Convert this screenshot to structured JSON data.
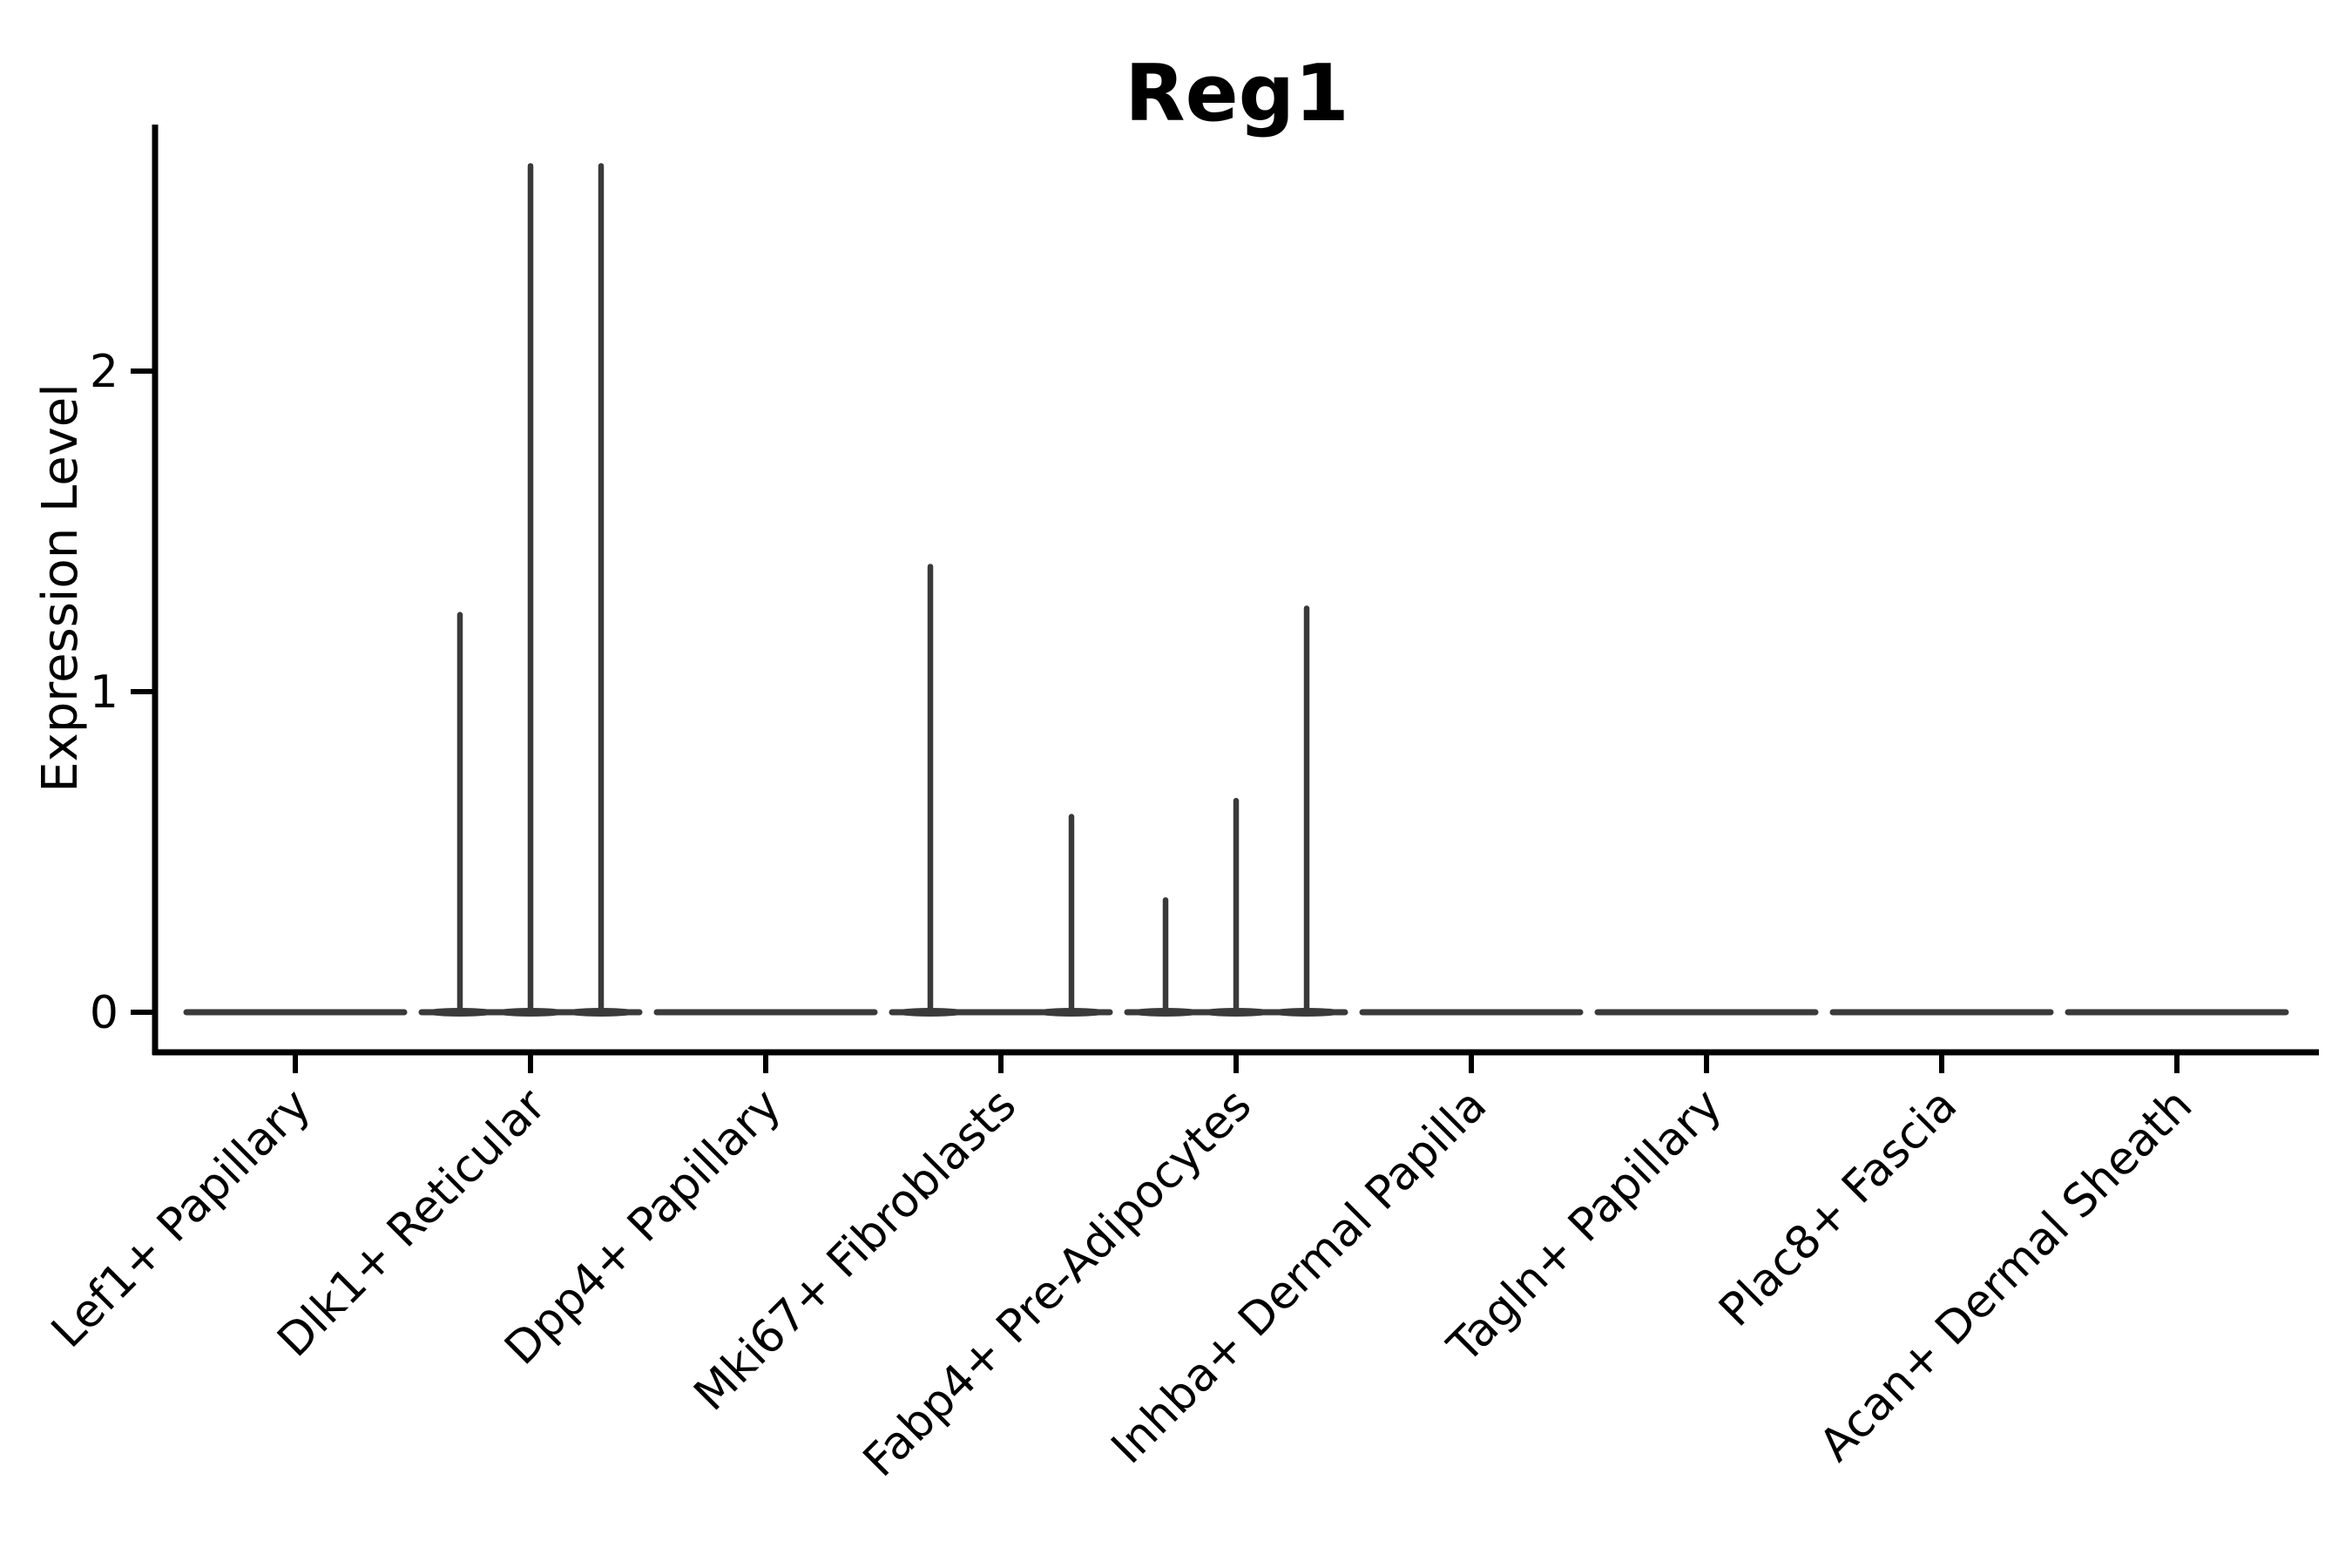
{
  "figure": {
    "background": "#ffffff"
  },
  "chart_data": {
    "type": "violin",
    "title": "Reg1",
    "xlabel": "",
    "ylabel": "Expression Level",
    "ylim": [
      0,
      2.77
    ],
    "yticks": [
      0,
      1,
      2
    ],
    "grid": false,
    "legend": "none",
    "categories": [
      "Lef1+ Papillary",
      "Dlk1+ Reticular",
      "Dpp4+ Papillary",
      "Mki67+ Fibroblasts",
      "Fabp4+ Pre-Adipocytes",
      "Inhba+ Dermal Papilla",
      "Tagln+ Papillary",
      "Plac8+ Fascia",
      "Acan+ Dermal Sheath"
    ],
    "violins": [
      {
        "category": "Lef1+ Papillary",
        "baseline": 0,
        "spikes": []
      },
      {
        "category": "Dlk1+ Reticular",
        "baseline": 0,
        "spikes": [
          {
            "pos": -0.3,
            "peak": 1.24
          },
          {
            "pos": 0.0,
            "peak": 2.64
          },
          {
            "pos": 0.3,
            "peak": 2.64
          }
        ]
      },
      {
        "category": "Dpp4+ Papillary",
        "baseline": 0,
        "spikes": []
      },
      {
        "category": "Mki67+ Fibroblasts",
        "baseline": 0,
        "spikes": [
          {
            "pos": -0.3,
            "peak": 1.39
          },
          {
            "pos": 0.3,
            "peak": 0.61
          }
        ]
      },
      {
        "category": "Fabp4+ Pre-Adipocytes",
        "baseline": 0,
        "spikes": [
          {
            "pos": -0.3,
            "peak": 0.35
          },
          {
            "pos": 0.0,
            "peak": 0.66
          },
          {
            "pos": 0.3,
            "peak": 1.26
          }
        ]
      },
      {
        "category": "Inhba+ Dermal Papilla",
        "baseline": 0,
        "spikes": []
      },
      {
        "category": "Tagln+ Papillary",
        "baseline": 0,
        "spikes": []
      },
      {
        "category": "Plac8+ Fascia",
        "baseline": 0,
        "spikes": []
      },
      {
        "category": "Acan+ Dermal Sheath",
        "baseline": 0,
        "spikes": []
      }
    ],
    "colors": {
      "violin_stroke": "#3a3a3a",
      "axis": "#000000",
      "text": "#000000"
    }
  }
}
